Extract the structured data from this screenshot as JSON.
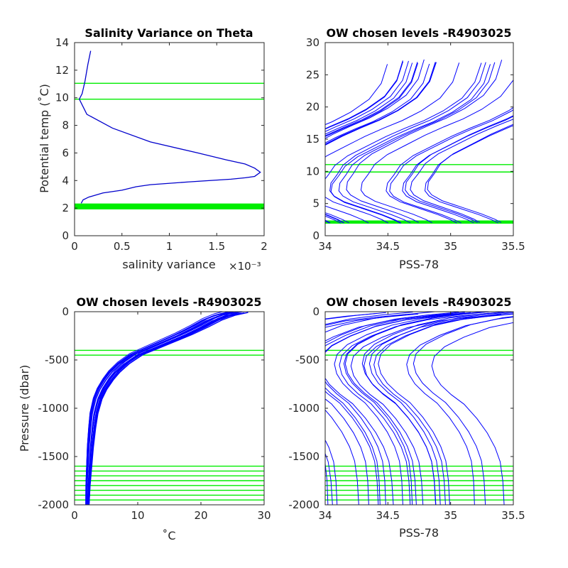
{
  "chart_data": [
    {
      "type": "line",
      "title": "Salinity Variance on Theta",
      "xlabel": "salinity variance",
      "x_exponent": "×10⁻³",
      "ylabel": "Potential temp (˚C)",
      "xlim": [
        0,
        2
      ],
      "ylim": [
        0,
        14
      ],
      "xticks": [
        "0",
        "0.5",
        "1",
        "1.5",
        "2"
      ],
      "yticks": [
        "0",
        "2",
        "4",
        "6",
        "8",
        "10",
        "12",
        "14"
      ],
      "grid": false,
      "line_color": "#0000cc",
      "level_color": "#00ee00",
      "series": [
        {
          "x": [
            0.17,
            0.14,
            0.11,
            0.08,
            0.05,
            0.13,
            0.4,
            0.8,
            1.3,
            1.6,
            1.8,
            1.9,
            1.96,
            1.9,
            1.8,
            1.65,
            1.2,
            0.8,
            0.65,
            0.5,
            0.3,
            0.15,
            0.09,
            0.07
          ],
          "y": [
            13.4,
            12.4,
            11.2,
            10.3,
            9.9,
            8.8,
            7.8,
            6.8,
            6.0,
            5.5,
            5.2,
            4.9,
            4.6,
            4.3,
            4.2,
            4.1,
            3.9,
            3.7,
            3.55,
            3.3,
            3.1,
            2.8,
            2.6,
            2.35
          ]
        }
      ],
      "levels": [
        11.05,
        9.9,
        2.3,
        2.25,
        2.2,
        2.15,
        2.1,
        2.05,
        2.0,
        1.95
      ]
    },
    {
      "type": "line",
      "title": "OW chosen levels -R4903025",
      "xlabel": "PSS-78",
      "ylabel": "",
      "xlim": [
        34,
        35.5
      ],
      "ylim": [
        0,
        30
      ],
      "xticks": [
        "34",
        "34.5",
        "35",
        "35.5"
      ],
      "yticks": [
        "0",
        "5",
        "10",
        "15",
        "20",
        "25",
        "30"
      ],
      "grid": false,
      "line_color": "#0000ff",
      "level_color": "#00ee00",
      "series": [
        {
          "x": [
            34.6,
            34.55,
            34.45,
            34.3,
            34.15,
            34.07,
            34.04,
            34.05,
            34.1,
            34.15,
            34.25,
            34.4,
            34.55,
            34.7,
            34.85,
            35.0,
            35.15,
            35.25,
            35.3
          ],
          "y": [
            2.0,
            2.5,
            3.3,
            4.3,
            5.3,
            6.2,
            7.0,
            8.2,
            9.5,
            11.0,
            12.5,
            14.0,
            15.5,
            16.8,
            18.0,
            19.5,
            21.5,
            24.0,
            27.0
          ]
        }
      ],
      "levels": [
        11.05,
        9.9,
        2.3,
        2.25,
        2.2,
        2.15,
        2.1,
        2.05,
        2.0,
        1.95
      ]
    },
    {
      "type": "line",
      "title": "OW chosen levels -R4903025",
      "xlabel": "˚C",
      "ylabel": "Pressure (dbar)",
      "xlim": [
        0,
        30
      ],
      "ylim": [
        -2000,
        0
      ],
      "xticks": [
        "0",
        "10",
        "20",
        "30"
      ],
      "yticks": [
        "-2000",
        "-1500",
        "-1000",
        "-500",
        "0"
      ],
      "grid": false,
      "line_color": "#0000ff",
      "level_color": "#00ee00",
      "series": [
        {
          "x": [
            26,
            24,
            22,
            20,
            17.5,
            15,
            12.5,
            10,
            8,
            6.5,
            5.5,
            4.5,
            3.8,
            3.2,
            2.9,
            2.6,
            2.4,
            2.2,
            2.1
          ],
          "y": [
            0,
            -30,
            -80,
            -150,
            -230,
            -300,
            -370,
            -440,
            -530,
            -620,
            -700,
            -800,
            -900,
            -1050,
            -1200,
            -1400,
            -1600,
            -1800,
            -2000
          ]
        }
      ],
      "levels": [
        -400,
        -450,
        -1600,
        -1650,
        -1700,
        -1750,
        -1800,
        -1850,
        -1900,
        -1950
      ]
    },
    {
      "type": "line",
      "title": "OW chosen levels -R4903025",
      "xlabel": "PSS-78",
      "ylabel": "",
      "xlim": [
        34,
        35.5
      ],
      "ylim": [
        -2000,
        0
      ],
      "xticks": [
        "34",
        "34.5",
        "35",
        "35.5"
      ],
      "yticks": [
        "-2000",
        "-1500",
        "-1000",
        "-500",
        "0"
      ],
      "grid": false,
      "line_color": "#0000ff",
      "level_color": "#00ee00",
      "series": [
        {
          "x": [
            35.25,
            35.0,
            34.75,
            34.5,
            34.3,
            34.15,
            34.07,
            34.05,
            34.07,
            34.12,
            34.2,
            34.3,
            34.4,
            34.48,
            34.54,
            34.58,
            34.6,
            34.61
          ],
          "y": [
            -10,
            -40,
            -80,
            -150,
            -250,
            -350,
            -450,
            -550,
            -650,
            -750,
            -850,
            -950,
            -1100,
            -1250,
            -1400,
            -1550,
            -1750,
            -2000
          ]
        }
      ],
      "levels": [
        -400,
        -450,
        -1600,
        -1650,
        -1700,
        -1750,
        -1800,
        -1850,
        -1900,
        -1950
      ]
    }
  ]
}
